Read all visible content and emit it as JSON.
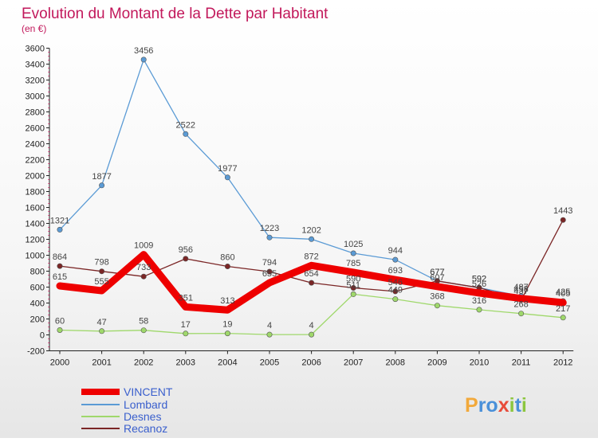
{
  "chart_data": {
    "type": "line",
    "title": "Evolution du Montant de la Dette par Habitant",
    "subtitle": "(en €)",
    "x": [
      "2000",
      "2001",
      "2002",
      "2003",
      "2004",
      "2005",
      "2006",
      "2007",
      "2008",
      "2009",
      "2010",
      "2011",
      "2012"
    ],
    "y_ticks": [
      "-200",
      "0",
      "200",
      "400",
      "600",
      "800",
      "1000",
      "1200",
      "1400",
      "1600",
      "1800",
      "2000",
      "2200",
      "2400",
      "2600",
      "2800",
      "3000",
      "3200",
      "3400",
      "3600"
    ],
    "ylim": [
      -200,
      3600
    ],
    "grid": false,
    "legend_position": "bottom-left",
    "series": [
      {
        "name": "VINCENT",
        "color": "#ee0000",
        "values": [
          615,
          555,
          1009,
          351,
          313,
          655,
          872,
          785,
          693,
          607,
          526,
          458,
          405
        ]
      },
      {
        "name": "Lombard",
        "color": "#5b9bd5",
        "values": [
          1321,
          1877,
          3456,
          2522,
          1977,
          1223,
          1202,
          1025,
          944,
          677,
          592,
          487,
          425
        ]
      },
      {
        "name": "Desnes",
        "color": "#9fd86b",
        "values": [
          60,
          47,
          58,
          17,
          19,
          4,
          4,
          511,
          449,
          368,
          316,
          268,
          217
        ]
      },
      {
        "name": "Recanoz",
        "color": "#7b2626",
        "values": [
          864,
          798,
          733,
          956,
          860,
          794,
          654,
          590,
          546,
          677,
          592,
          437,
          1443
        ]
      }
    ]
  },
  "brand": {
    "text": "Proxiti",
    "letters": [
      "P",
      "r",
      "o",
      "x",
      "i",
      "t",
      "i"
    ],
    "colors": [
      "#f2a93b",
      "#4a90d9",
      "#4a90d9",
      "#e84b3a",
      "#8cc63f",
      "#4a90d9",
      "#8cc63f"
    ]
  }
}
